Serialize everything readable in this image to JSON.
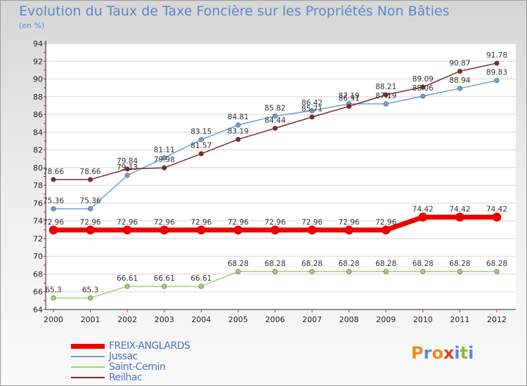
{
  "title": "Evolution du Taux de Taxe Foncière sur les Propriétés Non Bâties",
  "unit": "(en %)",
  "logo": {
    "letters": [
      "P",
      "r",
      "o",
      "x",
      "i",
      "t",
      "i"
    ],
    "colors": [
      "#f08a1c",
      "#4a90d9",
      "#f08a1c",
      "#e23a2a",
      "#4a90d9",
      "#8cbc32",
      "#4a90d9"
    ]
  },
  "chart_data": {
    "type": "line",
    "title": "Evolution du Taux de Taxe Foncière sur les Propriétés Non Bâties",
    "ylabel": "(en %)",
    "xlabel": "",
    "ylim": [
      64,
      94
    ],
    "yticks": [
      64,
      66,
      68,
      70,
      72,
      74,
      76,
      78,
      80,
      82,
      84,
      86,
      88,
      90,
      92,
      94
    ],
    "categories": [
      "2000",
      "2001",
      "2002",
      "2003",
      "2004",
      "2005",
      "2006",
      "2007",
      "2008",
      "2009",
      "2010",
      "2011",
      "2012"
    ],
    "series": [
      {
        "name": "FREIX-ANGLARDS",
        "color": "#ee0000",
        "values": [
          72.96,
          72.96,
          72.96,
          72.96,
          72.96,
          72.96,
          72.96,
          72.96,
          72.96,
          72.96,
          74.42,
          74.42,
          74.42
        ],
        "labels": [
          "72.96",
          "72.96",
          "72.96",
          "72.96",
          "72.96",
          "72.96",
          "72.96",
          "72.96",
          "72.96",
          "72.96",
          "74.42",
          "74.42",
          "74.42"
        ]
      },
      {
        "name": "Jussac",
        "color": "#6a9fd4",
        "values": [
          75.36,
          75.36,
          79.13,
          81.11,
          83.15,
          84.81,
          85.82,
          86.42,
          87.19,
          87.19,
          88.06,
          88.94,
          89.83
        ],
        "labels": [
          "75.36",
          "75.36",
          "79.13",
          "81.11",
          "83.15",
          "84.81",
          "85.82",
          "86.42",
          "87.19",
          "87.19",
          "88.06",
          "88.94",
          "89.83"
        ]
      },
      {
        "name": "Saint-Cernin",
        "color": "#9fd46a",
        "values": [
          65.3,
          65.3,
          66.61,
          66.61,
          66.61,
          68.28,
          68.28,
          68.28,
          68.28,
          68.28,
          68.28,
          68.28,
          68.28
        ],
        "labels": [
          "65.3",
          "65.3",
          "66.61",
          "66.61",
          "66.61",
          "68.28",
          "68.28",
          "68.28",
          "68.28",
          "68.28",
          "68.28",
          "68.28",
          "68.28"
        ]
      },
      {
        "name": "Reilhac",
        "color": "#7a2a2a",
        "values": [
          78.66,
          78.66,
          79.84,
          79.98,
          81.57,
          83.19,
          84.44,
          85.71,
          86.91,
          88.21,
          89.09,
          90.87,
          91.78
        ],
        "labels": [
          "78.66",
          "78.66",
          "79.84",
          "79.98",
          "81.57",
          "83.19",
          "84.44",
          "85.71",
          "86.91",
          "88.21",
          "89.09",
          "90.87",
          "91.78"
        ]
      }
    ]
  }
}
